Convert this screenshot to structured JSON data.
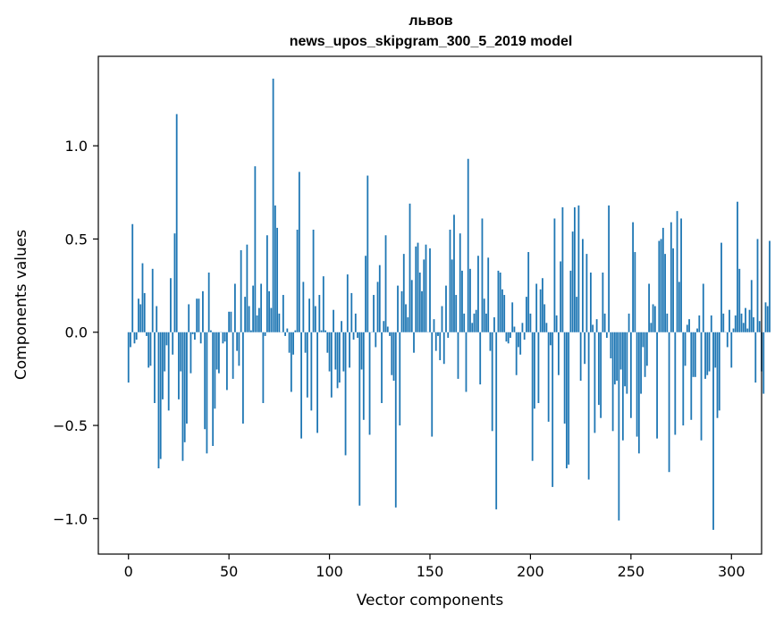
{
  "chart_data": {
    "type": "bar",
    "title": "львов",
    "subtitle": "news_upos_skipgram_300_5_2019 model",
    "xlabel": "Vector components",
    "ylabel": "Components values",
    "xlim": [
      -15,
      315
    ],
    "ylim": [
      -1.19,
      1.48
    ],
    "xticks": [
      0,
      50,
      100,
      150,
      200,
      250,
      300
    ],
    "xtick_labels": [
      "0",
      "50",
      "100",
      "150",
      "200",
      "250",
      "300"
    ],
    "yticks": [
      -1.0,
      -0.5,
      0.0,
      0.5,
      1.0
    ],
    "ytick_labels": [
      "−1.0",
      "−0.5",
      "0.0",
      "0.5",
      "1.0"
    ],
    "bar_color": "#1f77b4",
    "grid": false,
    "values": [
      -0.27,
      -0.08,
      0.58,
      -0.06,
      -0.04,
      0.18,
      0.15,
      0.37,
      0.21,
      -0.02,
      -0.19,
      -0.18,
      0.34,
      -0.38,
      0.14,
      -0.73,
      -0.68,
      -0.36,
      -0.21,
      -0.07,
      -0.42,
      0.29,
      -0.12,
      0.53,
      1.17,
      -0.36,
      -0.21,
      -0.69,
      -0.59,
      -0.49,
      0.15,
      -0.22,
      -0.01,
      -0.04,
      0.18,
      0.18,
      -0.06,
      0.22,
      -0.52,
      -0.65,
      0.32,
      0.01,
      -0.61,
      -0.41,
      -0.2,
      -0.22,
      0.0,
      -0.06,
      -0.05,
      -0.31,
      0.11,
      0.11,
      -0.25,
      0.26,
      -0.1,
      -0.18,
      0.44,
      -0.49,
      0.19,
      0.47,
      0.14,
      0.01,
      0.25,
      0.89,
      0.09,
      0.13,
      0.26,
      -0.38,
      -0.02,
      0.52,
      0.22,
      0.13,
      1.36,
      0.68,
      0.56,
      0.1,
      0.0,
      0.2,
      -0.02,
      0.02,
      -0.11,
      -0.32,
      -0.12,
      0.01,
      0.55,
      0.86,
      -0.57,
      0.27,
      -0.11,
      -0.35,
      0.18,
      -0.42,
      0.55,
      0.14,
      -0.54,
      0.2,
      0.01,
      0.3,
      0.01,
      -0.11,
      -0.21,
      -0.35,
      0.12,
      -0.2,
      -0.3,
      -0.27,
      0.06,
      -0.21,
      -0.66,
      0.31,
      -0.19,
      0.21,
      -0.04,
      0.1,
      -0.03,
      -0.93,
      -0.2,
      -0.47,
      0.41,
      0.84,
      -0.55,
      0.0,
      0.2,
      -0.08,
      0.27,
      0.36,
      -0.38,
      0.06,
      0.52,
      0.03,
      -0.02,
      -0.23,
      -0.26,
      -0.94,
      0.25,
      -0.5,
      0.22,
      0.42,
      0.15,
      0.08,
      0.69,
      0.28,
      -0.11,
      0.46,
      0.48,
      0.32,
      0.22,
      0.39,
      0.47,
      0.0,
      0.45,
      -0.56,
      0.07,
      -0.1,
      -0.02,
      -0.15,
      0.14,
      -0.17,
      0.25,
      -0.03,
      0.55,
      0.39,
      0.63,
      0.2,
      -0.25,
      0.53,
      0.33,
      0.1,
      -0.32,
      0.93,
      0.34,
      0.05,
      0.1,
      0.12,
      0.41,
      -0.28,
      0.61,
      0.18,
      0.1,
      0.4,
      -0.1,
      -0.53,
      0.08,
      -0.95,
      0.33,
      0.32,
      0.23,
      0.2,
      -0.05,
      -0.06,
      -0.03,
      0.16,
      0.03,
      -0.23,
      -0.08,
      -0.12,
      0.05,
      -0.04,
      0.19,
      0.43,
      0.1,
      -0.69,
      -0.41,
      0.26,
      -0.38,
      0.23,
      0.29,
      0.15,
      0.05,
      -0.48,
      -0.07,
      -0.83,
      0.61,
      0.09,
      -0.23,
      0.38,
      0.67,
      -0.49,
      -0.73,
      -0.71,
      0.33,
      0.54,
      0.67,
      0.19,
      0.68,
      -0.26,
      0.5,
      -0.17,
      0.42,
      -0.79,
      0.32,
      0.04,
      -0.54,
      0.07,
      -0.39,
      -0.46,
      0.32,
      0.1,
      -0.03,
      0.68,
      -0.14,
      -0.53,
      -0.28,
      -0.26,
      -1.01,
      -0.2,
      -0.58,
      -0.29,
      -0.33,
      0.1,
      -0.46,
      0.59,
      0.43,
      -0.56,
      -0.65,
      -0.33,
      -0.08,
      -0.24,
      -0.18,
      0.26,
      0.05,
      0.15,
      0.14,
      -0.57,
      0.49,
      0.5,
      0.56,
      0.42,
      0.1,
      -0.75,
      0.59,
      0.45,
      -0.55,
      0.65,
      0.27,
      0.61,
      -0.5,
      -0.18,
      0.04,
      0.07,
      -0.47,
      -0.24,
      -0.24,
      0.02,
      0.09,
      -0.58,
      0.26,
      -0.25,
      -0.23,
      -0.21,
      0.09,
      -1.06,
      -0.19,
      -0.46,
      -0.42,
      0.48,
      0.1,
      0.0,
      -0.08,
      0.12,
      -0.19,
      0.02,
      0.09,
      0.7,
      0.34,
      0.1,
      0.05,
      0.13,
      0.02,
      0.12,
      0.28,
      0.08,
      -0.27,
      0.5,
      0.06,
      -0.21,
      -0.33,
      0.16,
      0.14,
      0.49
    ]
  }
}
